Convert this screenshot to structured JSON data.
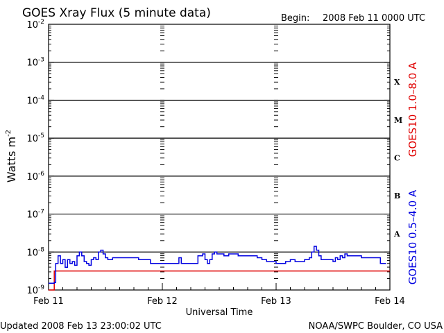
{
  "header": {
    "title": "GOES Xray Flux (5 minute data)",
    "begin_label": "Begin:",
    "begin_value": "2008 Feb 11 0000 UTC"
  },
  "footer": {
    "updated": "Updated 2008 Feb 13 23:00:02 UTC",
    "credit": "NOAA/SWPC Boulder, CO USA"
  },
  "colors": {
    "long_channel": "#e00000",
    "short_channel": "#0000e0",
    "axis": "#000000",
    "background": "#ffffff"
  },
  "chart_data": {
    "type": "line",
    "title": "GOES Xray Flux (5 minute data)",
    "ylabel": "Watts m",
    "ylabel_sup": "-2",
    "xlabel": "Universal Time",
    "yscale": "log",
    "ylim": [
      1e-09,
      0.01
    ],
    "xlim": [
      0,
      72
    ],
    "x_units": "hours since 2008 Feb 11 0000 UTC",
    "grid": true,
    "yticks": [
      {
        "base": "10",
        "exp": "-2",
        "value": -2
      },
      {
        "base": "10",
        "exp": "-3",
        "value": -3
      },
      {
        "base": "10",
        "exp": "-4",
        "value": -4
      },
      {
        "base": "10",
        "exp": "-5",
        "value": -5
      },
      {
        "base": "10",
        "exp": "-6",
        "value": -6
      },
      {
        "base": "10",
        "exp": "-7",
        "value": -7
      },
      {
        "base": "10",
        "exp": "-8",
        "value": -8
      },
      {
        "base": "10",
        "exp": "-9",
        "value": -9
      }
    ],
    "xticks": [
      {
        "label": "Feb 11",
        "value": 0
      },
      {
        "label": "Feb 12",
        "value": 24
      },
      {
        "label": "Feb 13",
        "value": 48
      },
      {
        "label": "Feb 14",
        "value": 72
      }
    ],
    "flare_classes": [
      {
        "label": "X",
        "log_value": -3.5
      },
      {
        "label": "M",
        "log_value": -4.5
      },
      {
        "label": "C",
        "log_value": -5.5
      },
      {
        "label": "B",
        "log_value": -6.5
      },
      {
        "label": "A",
        "log_value": -7.5
      }
    ],
    "series": [
      {
        "name": "GOES10 1.0–8.0 A",
        "color": "#e00000",
        "x": [
          0,
          1,
          1.2,
          2,
          4,
          8,
          12,
          16,
          20,
          24,
          28,
          32,
          36,
          40,
          44,
          48,
          52,
          56,
          60,
          64,
          68,
          72
        ],
        "logy": [
          -9.0,
          -9.0,
          -8.5,
          -8.5,
          -8.5,
          -8.5,
          -8.5,
          -8.5,
          -8.5,
          -8.5,
          -8.5,
          -8.5,
          -8.5,
          -8.5,
          -8.5,
          -8.5,
          -8.5,
          -8.5,
          -8.5,
          -8.5,
          -8.5,
          -8.5
        ]
      },
      {
        "name": "GOES10 0.5–4.0 A",
        "color": "#0000e0",
        "x": [
          0,
          1.0,
          1.2,
          1.5,
          2.0,
          2.5,
          3.0,
          3.5,
          4.0,
          4.5,
          5.0,
          5.5,
          6.0,
          6.5,
          7.0,
          7.5,
          8.0,
          8.5,
          9.0,
          9.5,
          10.0,
          10.5,
          11.0,
          11.5,
          12.0,
          12.5,
          13.0,
          13.5,
          14.0,
          15.0,
          16.0,
          17.0,
          18.0,
          19.0,
          20.0,
          21.0,
          21.5,
          22.0,
          23.0,
          24.0,
          25.0,
          26.0,
          27.0,
          27.5,
          28.0,
          29.0,
          30.0,
          31.0,
          31.5,
          32.0,
          32.5,
          33.0,
          33.5,
          34.0,
          34.5,
          35.0,
          35.5,
          36.0,
          37.0,
          38.0,
          39.0,
          40.0,
          41.0,
          42.0,
          43.0,
          44.0,
          45.0,
          46.0,
          47.0,
          48.0,
          49.0,
          50.0,
          51.0,
          51.5,
          52.0,
          53.0,
          54.0,
          55.0,
          55.5,
          56.0,
          56.5,
          57.0,
          57.5,
          58.0,
          59.0,
          60.0,
          60.5,
          61.0,
          61.5,
          62.0,
          62.5,
          63.0,
          64.0,
          65.0,
          66.0,
          67.0,
          68.0,
          69.0,
          70.0,
          71.0
        ],
        "logy": [
          -8.82,
          -8.82,
          -8.8,
          -8.3,
          -8.1,
          -8.3,
          -8.2,
          -8.4,
          -8.2,
          -8.3,
          -8.25,
          -8.35,
          -8.1,
          -8.0,
          -8.1,
          -8.25,
          -8.3,
          -8.35,
          -8.2,
          -8.15,
          -8.2,
          -8.0,
          -7.95,
          -8.05,
          -8.15,
          -8.2,
          -8.2,
          -8.15,
          -8.15,
          -8.15,
          -8.15,
          -8.15,
          -8.15,
          -8.2,
          -8.2,
          -8.2,
          -8.3,
          -8.3,
          -8.3,
          -8.3,
          -8.3,
          -8.3,
          -8.3,
          -8.15,
          -8.3,
          -8.3,
          -8.3,
          -8.3,
          -8.1,
          -8.1,
          -8.05,
          -8.2,
          -8.3,
          -8.2,
          -8.05,
          -8.0,
          -8.05,
          -8.05,
          -8.1,
          -8.05,
          -8.05,
          -8.1,
          -8.1,
          -8.1,
          -8.1,
          -8.15,
          -8.2,
          -8.25,
          -8.25,
          -8.3,
          -8.3,
          -8.25,
          -8.2,
          -8.2,
          -8.25,
          -8.25,
          -8.2,
          -8.15,
          -8.0,
          -7.85,
          -7.95,
          -8.1,
          -8.2,
          -8.2,
          -8.2,
          -8.25,
          -8.15,
          -8.2,
          -8.1,
          -8.15,
          -8.05,
          -8.1,
          -8.1,
          -8.1,
          -8.15,
          -8.15,
          -8.15,
          -8.15,
          -8.3,
          -8.3
        ]
      }
    ]
  }
}
